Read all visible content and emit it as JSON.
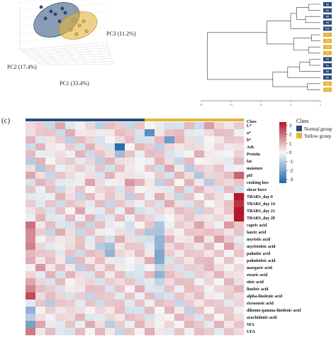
{
  "panel_c_label": "(c)",
  "colors": {
    "normal": "#2a4a7a",
    "yellow": "#e2b43a",
    "heat_low": "#2166ac",
    "heat_mid": "#f7f7f7",
    "heat_high": "#b2182b"
  },
  "chart_data": [
    {
      "type": "scatter",
      "subtype": "3d-pca",
      "axis_labels": {
        "pc1": "PC1 (33.4%)",
        "pc2": "PC2 (17.4%)",
        "pc3": "PC3 (11.2%)"
      },
      "series": [
        {
          "name": "Normal group",
          "points_visible": 7
        },
        {
          "name": "Yellow group",
          "points_visible": 6
        }
      ]
    },
    {
      "type": "dendrogram",
      "x_ticks": [
        "20",
        "15",
        "10",
        "5",
        "0"
      ],
      "leaves": [
        {
          "label": "N6",
          "group": "normal"
        },
        {
          "label": "N5",
          "group": "normal"
        },
        {
          "label": "N8",
          "group": "normal"
        },
        {
          "label": "N4",
          "group": "normal"
        },
        {
          "label": "N10",
          "group": "normal"
        },
        {
          "label": "Y7",
          "group": "yellow"
        },
        {
          "label": "Y3",
          "group": "yellow"
        },
        {
          "label": "Y10",
          "group": "yellow"
        },
        {
          "label": "Y5",
          "group": "yellow"
        },
        {
          "label": "N3",
          "group": "normal"
        },
        {
          "label": "N1",
          "group": "normal"
        },
        {
          "label": "N9",
          "group": "normal"
        },
        {
          "label": "N2",
          "group": "normal"
        },
        {
          "label": "Y6",
          "group": "yellow"
        },
        {
          "label": "Y7",
          "group": "yellow"
        }
      ]
    },
    {
      "type": "heatmap",
      "class_header": "Class",
      "legend": {
        "title": "Class",
        "items": [
          "Normal group",
          "Yellow group"
        ]
      },
      "scale": {
        "min": -3,
        "max": 3,
        "ticks": [
          "3",
          "2",
          "1",
          "0",
          "-1",
          "-2",
          "-3"
        ]
      },
      "columns": {
        "normal": 12,
        "yellow": 10
      },
      "rows": [
        "L*",
        "a*",
        "b*",
        "Ash",
        "Protein",
        "fat",
        "moisture",
        "pH",
        "cooking loss",
        "shear force",
        "TBARS_day 0",
        "TBARS_day 14",
        "TBARS_day 21",
        "TBARS_day 28",
        "capric acid",
        "lauric acid",
        "myristic acid",
        "myristoleic acid",
        "palmitic acid",
        "palmitoleic acid",
        "margaric acid",
        "stearic acid",
        "oleic acid",
        "linoleic acid",
        "alpha-linolenic acid",
        "eicosenoic acid",
        "dihomo-gamma-linolenic acid",
        "arachidonic acid",
        "SFA",
        "UFA"
      ],
      "values": [
        [
          0.6,
          0.2,
          -0.3,
          0.5,
          -0.2,
          0.3,
          0.1,
          -0.4,
          0.2,
          0.4,
          -0.1,
          0.3,
          0.2,
          -0.5,
          -0.3,
          0.1,
          0.4,
          -0.2,
          0.6,
          0.3,
          0.5,
          0.2
        ],
        [
          0.2,
          0.8,
          0.3,
          -0.2,
          0.4,
          0.1,
          0.5,
          -0.1,
          0.3,
          0.2,
          0.4,
          0.1,
          -2.2,
          0.3,
          0.1,
          0.6,
          0.2,
          -0.3,
          0.4,
          0.2,
          0.5,
          0.3
        ],
        [
          0.3,
          -0.2,
          0.5,
          0.2,
          -0.4,
          0.2,
          0.3,
          0.1,
          -0.2,
          0.4,
          0.2,
          -0.3,
          0.1,
          0.4,
          -1.5,
          0.3,
          0.2,
          0.1,
          -0.2,
          0.3,
          0.1,
          0.4
        ],
        [
          -0.2,
          0.3,
          0.1,
          0.4,
          0.2,
          -0.1,
          0.3,
          0.2,
          0.1,
          -3.0,
          0.2,
          0.3,
          0.4,
          -0.2,
          0.1,
          0.3,
          -0.1,
          0.2,
          0.4,
          0.1,
          0.3,
          -0.2
        ],
        [
          0.4,
          0.1,
          -0.5,
          0.2,
          0.3,
          0.5,
          -0.2,
          0.1,
          0.2,
          -0.6,
          0.3,
          0.1,
          0.2,
          0.5,
          0.1,
          -0.3,
          0.2,
          0.4,
          0.1,
          0.3,
          -0.2,
          0.5
        ],
        [
          -0.3,
          0.5,
          0.2,
          -0.1,
          0.4,
          0.2,
          0.1,
          -0.4,
          0.3,
          0.2,
          0.5,
          -0.2,
          0.1,
          0.3,
          0.2,
          -0.1,
          0.4,
          0.2,
          -0.3,
          0.1,
          0.2,
          0.4
        ],
        [
          0.2,
          -0.4,
          0.3,
          0.1,
          -0.2,
          0.4,
          0.2,
          0.3,
          -0.1,
          0.2,
          0.1,
          0.4,
          0.3,
          -0.2,
          0.5,
          0.1,
          -0.3,
          0.2,
          0.4,
          0.1,
          -0.1,
          0.3
        ],
        [
          0.5,
          0.2,
          -0.1,
          0.3,
          0.4,
          -0.3,
          0.2,
          0.1,
          0.5,
          0.3,
          -0.2,
          0.1,
          0.4,
          0.2,
          -0.1,
          0.3,
          0.2,
          -0.4,
          0.1,
          0.5,
          0.2,
          1.8
        ],
        [
          -0.1,
          0.3,
          0.4,
          0.2,
          -0.3,
          0.1,
          0.5,
          0.2,
          0.3,
          -0.1,
          1.2,
          0.3,
          0.1,
          -0.2,
          0.4,
          0.2,
          0.3,
          0.1,
          -0.3,
          0.2,
          0.4,
          0.1
        ],
        [
          0.3,
          0.1,
          0.2,
          -0.4,
          0.5,
          0.3,
          0.2,
          -0.1,
          0.4,
          0.1,
          0.3,
          0.2,
          -0.3,
          0.1,
          0.2,
          0.4,
          -0.1,
          0.3,
          0.2,
          0.1,
          0.4,
          -0.2
        ],
        [
          0.2,
          -0.3,
          0.1,
          0.3,
          0.2,
          -0.1,
          0.4,
          0.3,
          0.1,
          0.2,
          -0.2,
          0.3,
          0.1,
          0.4,
          0.2,
          -0.1,
          0.3,
          0.2,
          0.1,
          0.2,
          0.4,
          2.8
        ],
        [
          0.4,
          0.2,
          0.3,
          -0.2,
          0.1,
          0.3,
          0.2,
          0.4,
          -0.3,
          0.1,
          0.2,
          0.3,
          0.2,
          -0.1,
          0.4,
          0.2,
          0.1,
          0.3,
          0.2,
          -0.2,
          0.5,
          2.9
        ],
        [
          -0.2,
          0.4,
          0.1,
          0.3,
          0.2,
          0.5,
          -0.1,
          0.2,
          0.3,
          0.1,
          0.4,
          -0.3,
          0.2,
          0.1,
          0.3,
          0.2,
          0.4,
          -0.1,
          0.2,
          0.3,
          0.1,
          3.0
        ],
        [
          0.1,
          0.3,
          -0.2,
          0.2,
          0.4,
          0.1,
          0.3,
          -0.3,
          0.2,
          0.4,
          0.1,
          0.2,
          0.3,
          0.2,
          -0.2,
          0.4,
          0.1,
          0.2,
          0.5,
          0.1,
          0.3,
          2.8
        ],
        [
          1.4,
          0.3,
          0.2,
          -0.2,
          0.1,
          0.4,
          -0.3,
          0.2,
          0.1,
          0.3,
          -0.5,
          0.2,
          0.1,
          -0.8,
          0.3,
          0.2,
          0.4,
          0.5,
          0.2,
          0.3,
          0.8,
          0.6
        ],
        [
          1.6,
          0.2,
          -0.3,
          0.4,
          0.2,
          -0.1,
          0.3,
          0.1,
          -0.4,
          0.2,
          0.1,
          0.3,
          -0.6,
          -1.2,
          0.2,
          0.4,
          0.3,
          0.6,
          0.2,
          0.4,
          0.5,
          0.3
        ],
        [
          1.2,
          0.4,
          0.1,
          0.3,
          -0.2,
          0.5,
          0.2,
          0.3,
          -0.1,
          0.4,
          0.2,
          0.1,
          -0.5,
          -1.0,
          0.3,
          0.1,
          0.5,
          0.7,
          0.3,
          0.6,
          0.4,
          0.2
        ],
        [
          1.0,
          0.3,
          0.2,
          -0.1,
          0.4,
          0.2,
          0.1,
          -0.3,
          -1.1,
          0.3,
          0.1,
          0.4,
          0.2,
          -1.3,
          0.4,
          0.2,
          0.3,
          0.5,
          0.4,
          0.2,
          0.6,
          0.3
        ],
        [
          0.8,
          0.1,
          0.4,
          0.2,
          0.3,
          -0.2,
          0.2,
          0.4,
          -0.8,
          0.1,
          0.3,
          0.2,
          0.1,
          -1.1,
          0.2,
          0.3,
          0.1,
          0.4,
          0.5,
          0.3,
          0.2,
          0.1
        ],
        [
          0.6,
          0.3,
          0.2,
          0.1,
          -0.3,
          0.4,
          0.3,
          0.2,
          0.1,
          0.2,
          -0.2,
          0.3,
          0.4,
          -1.4,
          0.1,
          0.2,
          0.3,
          0.2,
          0.6,
          0.4,
          0.3,
          0.2
        ],
        [
          0.4,
          0.9,
          0.3,
          0.2,
          0.1,
          -0.2,
          0.4,
          0.3,
          0.2,
          0.1,
          0.3,
          -0.4,
          0.2,
          -0.9,
          0.3,
          0.1,
          0.2,
          0.5,
          0.3,
          0.2,
          0.4,
          0.1
        ],
        [
          0.3,
          0.2,
          0.5,
          -0.1,
          0.3,
          0.2,
          0.1,
          0.4,
          0.3,
          0.2,
          -0.3,
          0.1,
          0.4,
          -1.0,
          0.2,
          0.3,
          0.1,
          0.2,
          0.4,
          0.3,
          0.2,
          0.5
        ],
        [
          0.5,
          0.3,
          0.1,
          0.4,
          0.2,
          -0.2,
          0.3,
          0.1,
          0.2,
          0.4,
          0.1,
          -0.3,
          0.2,
          -0.7,
          0.4,
          0.2,
          0.5,
          0.3,
          0.1,
          0.2,
          0.3,
          0.2
        ],
        [
          1.5,
          0.2,
          0.4,
          0.1,
          -0.1,
          0.3,
          0.2,
          0.5,
          0.1,
          0.3,
          0.2,
          0.4,
          -0.2,
          0.1,
          0.3,
          0.1,
          0.2,
          0.4,
          0.3,
          0.1,
          0.5,
          0.3
        ],
        [
          2.0,
          0.4,
          0.2,
          0.3,
          0.1,
          0.2,
          -0.3,
          0.1,
          0.4,
          0.2,
          0.3,
          0.1,
          0.2,
          -0.4,
          0.1,
          0.3,
          0.4,
          0.2,
          0.1,
          0.3,
          0.2,
          0.4
        ],
        [
          0.2,
          0.3,
          -0.5,
          0.1,
          0.4,
          0.2,
          0.3,
          -0.2,
          0.1,
          0.5,
          0.2,
          0.3,
          0.1,
          0.2,
          0.4,
          -0.1,
          0.2,
          0.3,
          0.1,
          0.4,
          0.2,
          0.1
        ],
        [
          -1.2,
          0.4,
          0.2,
          0.3,
          -0.1,
          0.2,
          0.4,
          0.1,
          0.3,
          0.2,
          -0.3,
          0.1,
          0.4,
          0.2,
          0.3,
          0.1,
          -0.2,
          0.3,
          0.2,
          0.1,
          0.4,
          0.3
        ],
        [
          -1.0,
          0.2,
          0.3,
          0.1,
          0.4,
          0.3,
          -0.2,
          0.2,
          0.1,
          0.3,
          0.2,
          0.4,
          0.1,
          -0.1,
          0.2,
          0.3,
          0.4,
          0.1,
          0.3,
          0.2,
          0.1,
          0.2
        ],
        [
          -1.4,
          0.5,
          0.1,
          0.2,
          0.3,
          0.1,
          0.4,
          0.2,
          -0.3,
          0.2,
          0.1,
          0.3,
          0.2,
          0.4,
          0.1,
          0.2,
          0.3,
          0.4,
          0.2,
          0.5,
          0.3,
          0.1
        ],
        [
          1.3,
          0.3,
          0.2,
          -0.2,
          0.1,
          0.4,
          0.2,
          0.3,
          0.1,
          -0.1,
          0.3,
          0.2,
          0.4,
          0.1,
          0.2,
          0.3,
          0.1,
          0.2,
          0.4,
          0.2,
          0.3,
          0.4
        ]
      ]
    }
  ]
}
